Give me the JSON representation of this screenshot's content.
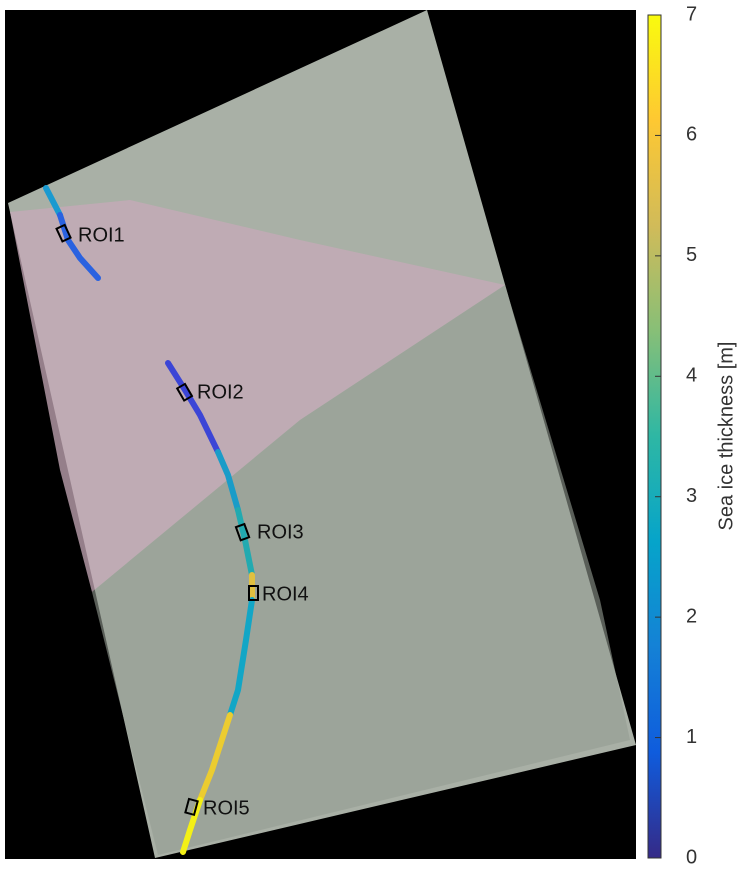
{
  "colorbar": {
    "label": "Sea ice thickness [m]",
    "lim": [
      0,
      7
    ],
    "ticks": [
      0,
      1,
      2,
      3,
      4,
      5,
      6,
      7
    ],
    "colors": [
      "#352a87",
      "#0f5cdd",
      "#1481d6",
      "#06a4ca",
      "#2eb7a4",
      "#87bf77",
      "#d1bb59",
      "#fec832",
      "#f9fb0e"
    ]
  },
  "rois": [
    {
      "label": "ROI1"
    },
    {
      "label": "ROI2"
    },
    {
      "label": "ROI3"
    },
    {
      "label": "ROI4"
    },
    {
      "label": "ROI5"
    }
  ]
}
